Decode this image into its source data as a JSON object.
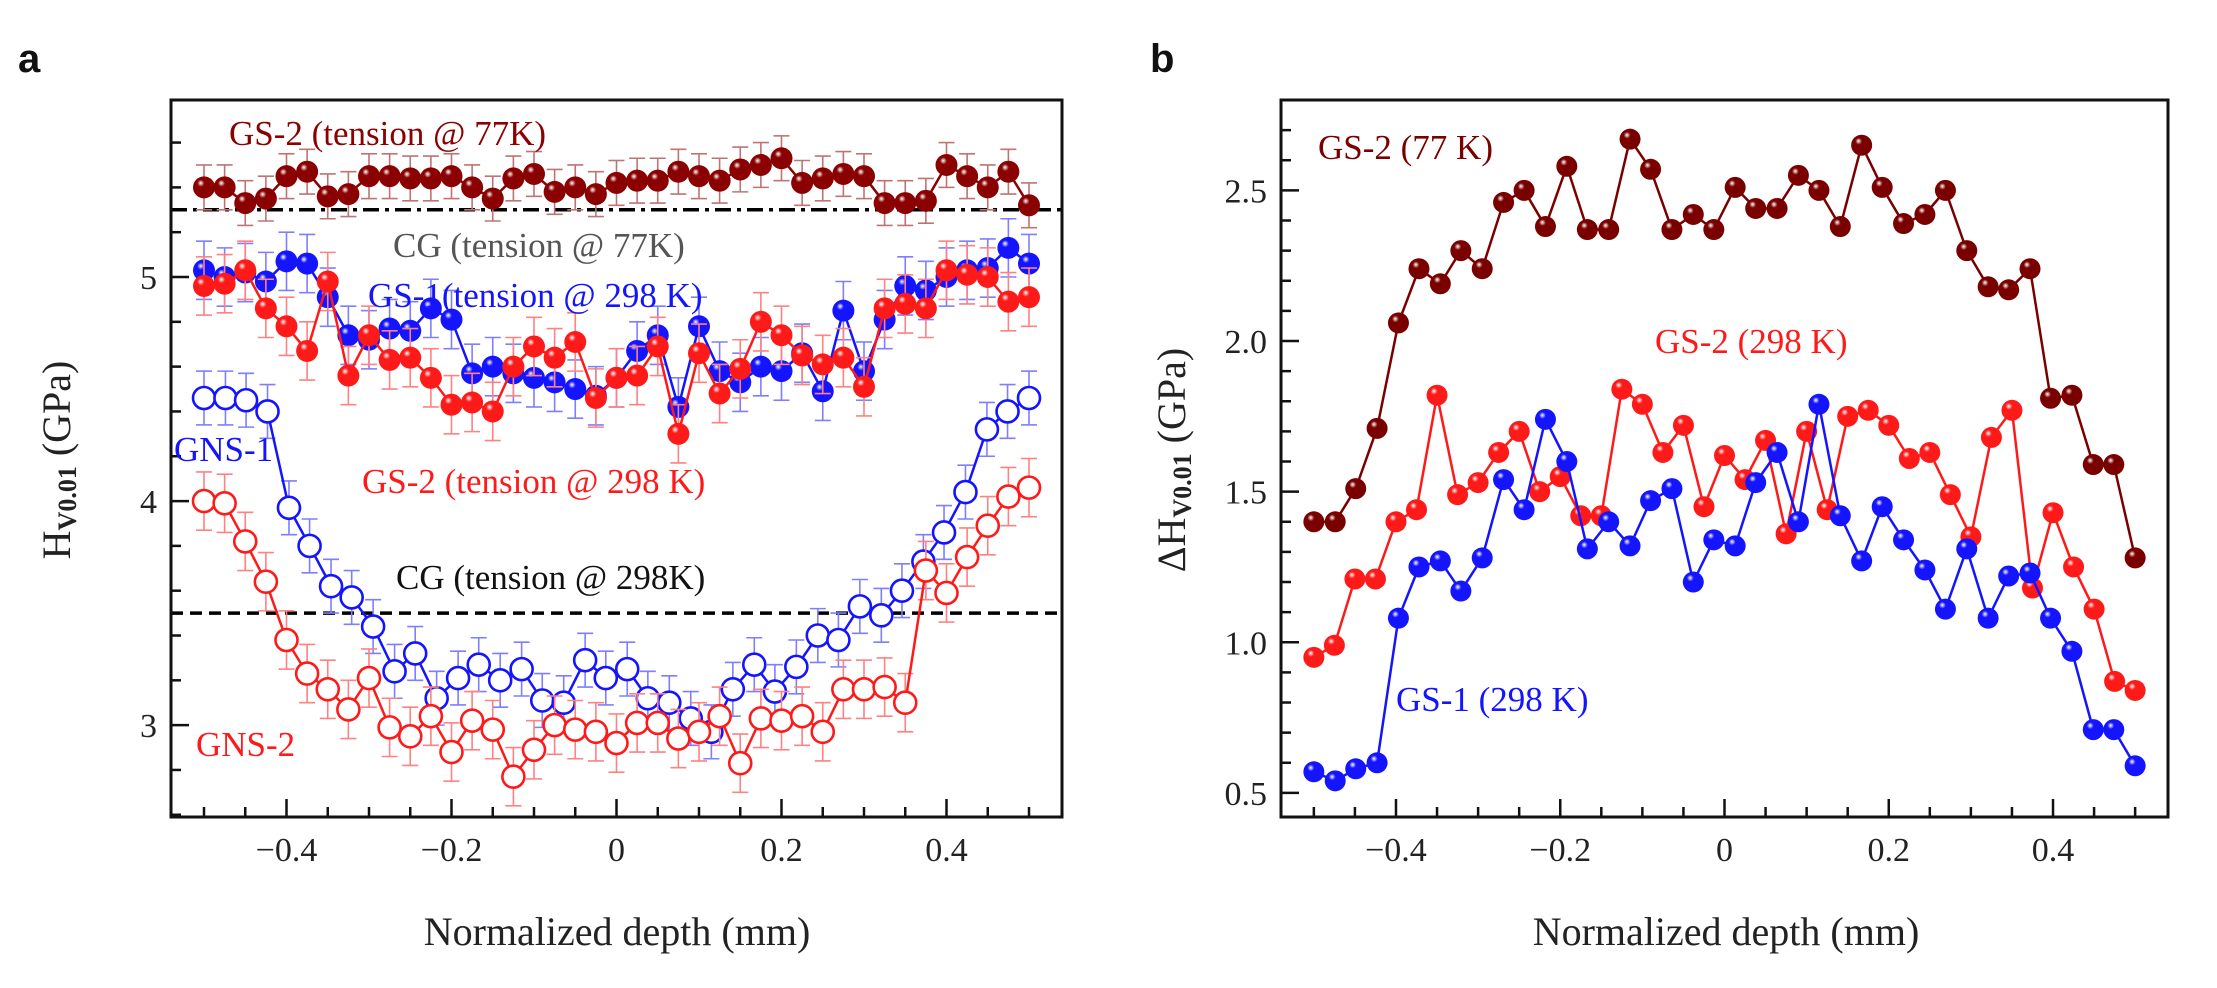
{
  "chart_data": [
    {
      "panel": "a",
      "type": "line",
      "xlabel": "Normalized depth (mm)",
      "ylabel": {
        "main": "H",
        "sub": "V0.01",
        "unit": " (GPa)"
      },
      "xlim": [
        -0.54,
        0.54
      ],
      "ylim": [
        2.59,
        5.79
      ],
      "xticks": [
        -0.4,
        -0.2,
        0,
        0.2,
        0.4
      ],
      "xtick_labels": [
        "−0.4",
        "−0.2",
        "0",
        "0.2",
        "0.4"
      ],
      "yticks": [
        3,
        4,
        5
      ],
      "ytick_labels": [
        "3",
        "4",
        "5"
      ],
      "grid": false,
      "x": [
        -0.5,
        -0.475,
        -0.45,
        -0.425,
        -0.4,
        -0.375,
        -0.35,
        -0.325,
        -0.3,
        -0.275,
        -0.25,
        -0.225,
        -0.2,
        -0.175,
        -0.15,
        -0.125,
        -0.1,
        -0.075,
        -0.05,
        -0.025,
        0,
        0.025,
        0.05,
        0.075,
        0.1,
        0.125,
        0.15,
        0.175,
        0.2,
        0.225,
        0.25,
        0.275,
        0.3,
        0.325,
        0.35,
        0.375,
        0.4,
        0.425,
        0.45,
        0.475,
        0.5
      ],
      "reference_lines": [
        {
          "label": "CG (tension @ 77K)",
          "y": 5.3,
          "style": "dash-dot",
          "color": "#000000"
        },
        {
          "label": "CG (tension @ 298K)",
          "y": 3.5,
          "style": "dashed",
          "color": "#000000"
        }
      ],
      "series": [
        {
          "name": "GS-2 (tension @ 77K)",
          "color": "#8b0000",
          "marker": "filled",
          "yerr": 0.1,
          "values": [
            5.4,
            5.4,
            5.33,
            5.35,
            5.45,
            5.47,
            5.36,
            5.37,
            5.45,
            5.45,
            5.44,
            5.44,
            5.45,
            5.4,
            5.35,
            5.44,
            5.46,
            5.38,
            5.4,
            5.37,
            5.42,
            5.43,
            5.43,
            5.47,
            5.45,
            5.43,
            5.48,
            5.5,
            5.53,
            5.42,
            5.44,
            5.46,
            5.45,
            5.33,
            5.33,
            5.34,
            5.5,
            5.45,
            5.4,
            5.47,
            5.32
          ]
        },
        {
          "name": "GS-1(tension @ 298 K)",
          "color": "#1414ff",
          "marker": "filled",
          "yerr": 0.13,
          "values": [
            5.03,
            5.0,
            5.02,
            4.98,
            5.07,
            5.06,
            4.91,
            4.74,
            4.72,
            4.77,
            4.76,
            4.86,
            4.81,
            4.57,
            4.6,
            4.57,
            4.55,
            4.53,
            4.5,
            4.47,
            4.55,
            4.67,
            4.74,
            4.42,
            4.78,
            4.58,
            4.53,
            4.6,
            4.58,
            4.66,
            4.49,
            4.85,
            4.58,
            4.81,
            4.96,
            4.94,
            5.0,
            5.03,
            5.04,
            5.13,
            5.06
          ]
        },
        {
          "name": "GS-2 (tension @ 298 K)",
          "color": "#ff1a1a",
          "marker": "filled",
          "yerr": 0.13,
          "values": [
            4.96,
            4.97,
            5.03,
            4.86,
            4.78,
            4.67,
            4.98,
            4.56,
            4.74,
            4.63,
            4.64,
            4.55,
            4.43,
            4.44,
            4.4,
            4.6,
            4.69,
            4.64,
            4.71,
            4.46,
            4.55,
            4.56,
            4.69,
            4.3,
            4.66,
            4.48,
            4.59,
            4.8,
            4.74,
            4.65,
            4.61,
            4.64,
            4.51,
            4.86,
            4.88,
            4.86,
            5.03,
            5.01,
            5.0,
            4.89,
            4.91
          ]
        },
        {
          "name": "GNS-1",
          "color": "#1414ff",
          "marker": "open",
          "yerr": 0.12,
          "x": [
            -0.5,
            -0.474,
            -0.449,
            -0.423,
            -0.397,
            -0.372,
            -0.346,
            -0.321,
            -0.295,
            -0.269,
            -0.244,
            -0.218,
            -0.192,
            -0.167,
            -0.141,
            -0.115,
            -0.09,
            -0.064,
            -0.038,
            -0.013,
            0.013,
            0.038,
            0.064,
            0.09,
            0.115,
            0.141,
            0.167,
            0.192,
            0.218,
            0.244,
            0.269,
            0.295,
            0.321,
            0.346,
            0.372,
            0.397,
            0.423,
            0.449,
            0.474,
            0.5
          ],
          "values": [
            4.46,
            4.46,
            4.45,
            4.4,
            3.97,
            3.8,
            3.62,
            3.57,
            3.44,
            3.24,
            3.32,
            3.12,
            3.21,
            3.27,
            3.2,
            3.25,
            3.11,
            3.1,
            3.29,
            3.21,
            3.25,
            3.12,
            3.1,
            3.03,
            2.97,
            3.16,
            3.27,
            3.15,
            3.26,
            3.4,
            3.38,
            3.53,
            3.49,
            3.6,
            3.73,
            3.86,
            4.04,
            4.32,
            4.4,
            4.46
          ]
        },
        {
          "name": "GNS-2",
          "color": "#ff1a1a",
          "marker": "open",
          "yerr": 0.13,
          "values": [
            4.0,
            3.99,
            3.82,
            3.64,
            3.38,
            3.23,
            3.16,
            3.07,
            3.21,
            2.99,
            2.95,
            3.04,
            2.88,
            3.02,
            2.98,
            2.77,
            2.89,
            3.0,
            2.98,
            2.97,
            2.92,
            3.01,
            3.01,
            2.94,
            2.97,
            3.04,
            2.83,
            3.03,
            3.02,
            3.04,
            2.97,
            3.16,
            3.16,
            3.17,
            3.1,
            3.69,
            3.59,
            3.75,
            3.89,
            4.02,
            4.06
          ]
        }
      ]
    },
    {
      "panel": "b",
      "type": "line",
      "xlabel": "Normalized depth (mm)",
      "ylabel": {
        "main": "ΔH",
        "sub": "V0.01",
        "unit": " (GPa)"
      },
      "xlim": [
        -0.54,
        0.54
      ],
      "ylim": [
        0.42,
        2.8
      ],
      "xticks": [
        -0.4,
        -0.2,
        0,
        0.2,
        0.4
      ],
      "xtick_labels": [
        "−0.4",
        "−0.2",
        "0",
        "0.2",
        "0.4"
      ],
      "yticks": [
        0.5,
        1.0,
        1.5,
        2.0,
        2.5
      ],
      "ytick_labels": [
        "0.5",
        "1.0",
        "1.5",
        "2.0",
        "2.5"
      ],
      "grid": false,
      "series": [
        {
          "name": "GS-2 (77 K)",
          "color": "#7a0000",
          "marker": "filled",
          "x": [
            -0.5,
            -0.474,
            -0.449,
            -0.423,
            -0.397,
            -0.372,
            -0.346,
            -0.321,
            -0.295,
            -0.269,
            -0.244,
            -0.218,
            -0.192,
            -0.167,
            -0.141,
            -0.115,
            -0.09,
            -0.064,
            -0.038,
            -0.013,
            0.013,
            0.038,
            0.064,
            0.09,
            0.115,
            0.141,
            0.167,
            0.192,
            0.218,
            0.244,
            0.269,
            0.295,
            0.321,
            0.346,
            0.372,
            0.397,
            0.423,
            0.449,
            0.474,
            0.5
          ],
          "values": [
            1.4,
            1.4,
            1.51,
            1.71,
            2.06,
            2.24,
            2.19,
            2.3,
            2.24,
            2.46,
            2.5,
            2.38,
            2.58,
            2.37,
            2.37,
            2.67,
            2.57,
            2.37,
            2.42,
            2.37,
            2.51,
            2.44,
            2.44,
            2.55,
            2.5,
            2.38,
            2.65,
            2.51,
            2.39,
            2.42,
            2.5,
            2.3,
            2.18,
            2.17,
            2.24,
            1.81,
            1.82,
            1.59,
            1.59,
            1.28
          ]
        },
        {
          "name": "GS-2 (298 K)",
          "color": "#ff1a1a",
          "marker": "filled",
          "x": [
            -0.5,
            -0.475,
            -0.45,
            -0.425,
            -0.4,
            -0.375,
            -0.35,
            -0.325,
            -0.3,
            -0.275,
            -0.25,
            -0.225,
            -0.2,
            -0.175,
            -0.15,
            -0.125,
            -0.1,
            -0.075,
            -0.05,
            -0.025,
            0,
            0.025,
            0.05,
            0.075,
            0.1,
            0.125,
            0.15,
            0.175,
            0.2,
            0.225,
            0.25,
            0.275,
            0.3,
            0.325,
            0.35,
            0.375,
            0.4,
            0.425,
            0.45,
            0.475,
            0.5
          ],
          "values": [
            0.95,
            0.99,
            1.21,
            1.21,
            1.4,
            1.44,
            1.82,
            1.49,
            1.53,
            1.63,
            1.7,
            1.5,
            1.55,
            1.42,
            1.42,
            1.84,
            1.79,
            1.63,
            1.72,
            1.45,
            1.62,
            1.54,
            1.67,
            1.36,
            1.7,
            1.44,
            1.75,
            1.77,
            1.72,
            1.61,
            1.63,
            1.49,
            1.35,
            1.68,
            1.77,
            1.18,
            1.43,
            1.25,
            1.11,
            0.87,
            0.84
          ]
        },
        {
          "name": "GS-1 (298 K)",
          "color": "#1414ff",
          "marker": "filled",
          "x": [
            -0.5,
            -0.474,
            -0.449,
            -0.423,
            -0.397,
            -0.372,
            -0.346,
            -0.321,
            -0.295,
            -0.269,
            -0.244,
            -0.218,
            -0.192,
            -0.167,
            -0.141,
            -0.115,
            -0.09,
            -0.064,
            -0.038,
            -0.013,
            0.013,
            0.038,
            0.064,
            0.09,
            0.115,
            0.141,
            0.167,
            0.192,
            0.218,
            0.244,
            0.269,
            0.295,
            0.321,
            0.346,
            0.372,
            0.397,
            0.423,
            0.449,
            0.474,
            0.5
          ],
          "values": [
            0.57,
            0.54,
            0.58,
            0.6,
            1.08,
            1.25,
            1.27,
            1.17,
            1.28,
            1.54,
            1.44,
            1.74,
            1.6,
            1.31,
            1.4,
            1.32,
            1.47,
            1.51,
            1.2,
            1.34,
            1.32,
            1.53,
            1.63,
            1.4,
            1.79,
            1.42,
            1.27,
            1.45,
            1.34,
            1.24,
            1.11,
            1.31,
            1.08,
            1.22,
            1.23,
            1.08,
            0.97,
            0.71,
            0.71,
            0.59
          ]
        }
      ]
    }
  ]
}
